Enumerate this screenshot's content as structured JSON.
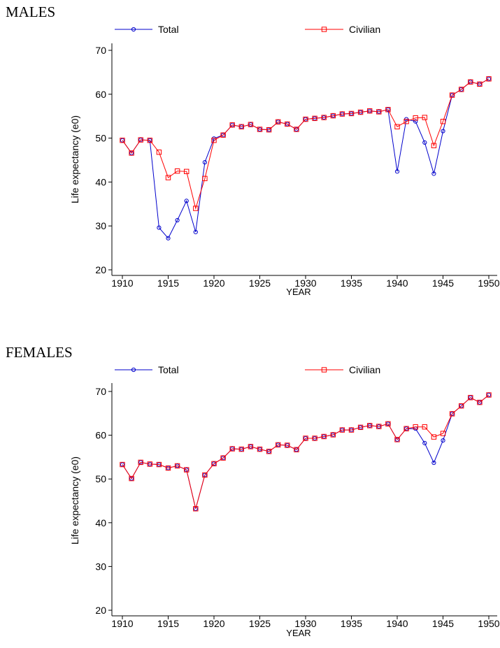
{
  "chart_data": [
    {
      "type": "line",
      "title": "MALES",
      "xlabel": "YEAR",
      "ylabel": "Life expectancy (e0)",
      "xlim": [
        1910,
        1950
      ],
      "ylim": [
        20,
        70
      ],
      "xticks": [
        1910,
        1915,
        1920,
        1925,
        1930,
        1935,
        1940,
        1945,
        1950
      ],
      "yticks": [
        20,
        30,
        40,
        50,
        60,
        70
      ],
      "grid": false,
      "legend": "top",
      "x": [
        1910,
        1911,
        1912,
        1913,
        1914,
        1915,
        1916,
        1917,
        1918,
        1919,
        1920,
        1921,
        1922,
        1923,
        1924,
        1925,
        1926,
        1927,
        1928,
        1929,
        1930,
        1931,
        1932,
        1933,
        1934,
        1935,
        1936,
        1937,
        1938,
        1939,
        1940,
        1941,
        1942,
        1943,
        1944,
        1945,
        1946,
        1947,
        1948,
        1949,
        1950
      ],
      "series": [
        {
          "name": "Total",
          "color": "#0000cc",
          "marker": "circle",
          "values": [
            49.5,
            46.6,
            49.6,
            49.5,
            29.6,
            27.2,
            31.3,
            35.7,
            28.6,
            44.5,
            49.9,
            50.7,
            53.0,
            52.6,
            53.1,
            52.0,
            51.9,
            53.7,
            53.2,
            52.0,
            54.3,
            54.5,
            54.7,
            55.1,
            55.5,
            55.6,
            55.9,
            56.2,
            56.0,
            56.5,
            42.4,
            54.3,
            53.8,
            49.0,
            41.9,
            51.6,
            59.8,
            61.1,
            62.8,
            62.3,
            63.5
          ]
        },
        {
          "name": "Civilian",
          "color": "#ff0000",
          "marker": "square",
          "values": [
            49.5,
            46.6,
            49.6,
            49.5,
            46.8,
            41.0,
            42.5,
            42.4,
            34.0,
            40.8,
            49.5,
            50.7,
            53.0,
            52.6,
            53.1,
            52.0,
            51.9,
            53.7,
            53.2,
            52.0,
            54.3,
            54.5,
            54.7,
            55.1,
            55.5,
            55.6,
            55.9,
            56.2,
            56.0,
            56.5,
            52.6,
            53.8,
            54.6,
            54.7,
            48.3,
            53.8,
            59.8,
            61.1,
            62.8,
            62.3,
            63.5
          ]
        }
      ]
    },
    {
      "type": "line",
      "title": "FEMALES",
      "xlabel": "YEAR",
      "ylabel": "Life expectancy (e0)",
      "xlim": [
        1910,
        1950
      ],
      "ylim": [
        20,
        70
      ],
      "xticks": [
        1910,
        1915,
        1920,
        1925,
        1930,
        1935,
        1940,
        1945,
        1950
      ],
      "yticks": [
        20,
        30,
        40,
        50,
        60,
        70
      ],
      "grid": false,
      "legend": "top",
      "x": [
        1910,
        1911,
        1912,
        1913,
        1914,
        1915,
        1916,
        1917,
        1918,
        1919,
        1920,
        1921,
        1922,
        1923,
        1924,
        1925,
        1926,
        1927,
        1928,
        1929,
        1930,
        1931,
        1932,
        1933,
        1934,
        1935,
        1936,
        1937,
        1938,
        1939,
        1940,
        1941,
        1942,
        1943,
        1944,
        1945,
        1946,
        1947,
        1948,
        1949,
        1950
      ],
      "series": [
        {
          "name": "Total",
          "color": "#0000cc",
          "marker": "circle",
          "values": [
            53.3,
            50.1,
            53.8,
            53.4,
            53.3,
            52.5,
            53.0,
            52.1,
            43.2,
            50.9,
            53.5,
            54.8,
            56.9,
            56.8,
            57.4,
            56.8,
            56.3,
            57.8,
            57.7,
            56.7,
            59.3,
            59.3,
            59.7,
            60.1,
            61.2,
            61.2,
            61.8,
            62.2,
            62.0,
            62.6,
            59.0,
            61.5,
            61.5,
            58.2,
            53.7,
            58.8,
            64.9,
            66.7,
            68.6,
            67.5,
            69.2
          ]
        },
        {
          "name": "Civilian",
          "color": "#ff0000",
          "marker": "square",
          "values": [
            53.3,
            50.1,
            53.8,
            53.4,
            53.3,
            52.5,
            53.0,
            52.1,
            43.2,
            50.9,
            53.5,
            54.8,
            56.9,
            56.8,
            57.4,
            56.8,
            56.3,
            57.8,
            57.7,
            56.7,
            59.3,
            59.3,
            59.7,
            60.1,
            61.2,
            61.2,
            61.8,
            62.2,
            62.0,
            62.6,
            59.0,
            61.5,
            61.9,
            61.9,
            59.6,
            60.4,
            64.9,
            66.7,
            68.6,
            67.5,
            69.2
          ]
        }
      ]
    }
  ]
}
